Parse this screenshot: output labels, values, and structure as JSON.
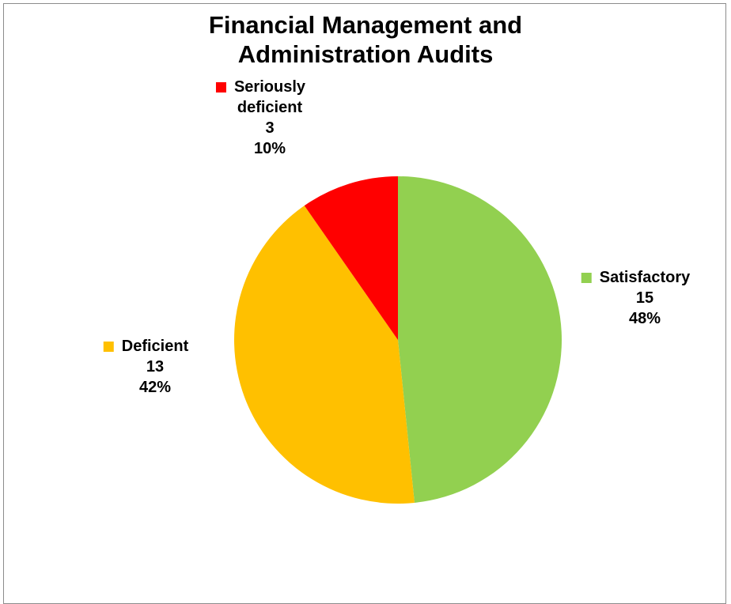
{
  "chart_data": {
    "type": "pie",
    "title": [
      "Financial Management and",
      "Administration Audits"
    ],
    "slices": [
      {
        "name": "Satisfactory",
        "name_lines": [
          "Satisfactory"
        ],
        "value": 15,
        "percent": "48%",
        "color": "#92d050"
      },
      {
        "name": "Deficient",
        "name_lines": [
          "Deficient"
        ],
        "value": 13,
        "percent": "42%",
        "color": "#ffc000"
      },
      {
        "name": "Seriously deficient",
        "name_lines": [
          "Seriously",
          "deficient"
        ],
        "value": 3,
        "percent": "10%",
        "color": "#ff0000"
      }
    ],
    "start_angle": "12 o'clock",
    "direction": "clockwise",
    "legend": "none",
    "data_labels": "category name with legend key, value, percentage"
  }
}
